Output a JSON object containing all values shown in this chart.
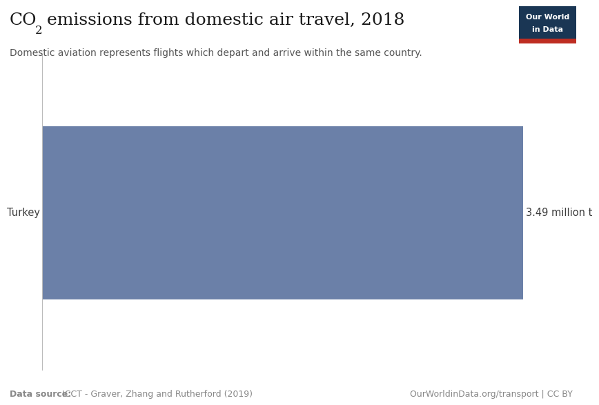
{
  "title_co2": "CO",
  "title_sub": "2",
  "title_rest": " emissions from domestic air travel, 2018",
  "subtitle": "Domestic aviation represents flights which depart and arrive within the same country.",
  "categories": [
    "Turkey"
  ],
  "values": [
    3.49
  ],
  "bar_color": "#6b80a8",
  "label_left": "Turkey",
  "label_right": "3.49 million t",
  "datasource_bold": "Data source:",
  "datasource_rest": " ICCT - Graver, Zhang and Rutherford (2019)",
  "footer_right": "OurWorldinData.org/transport | CC BY",
  "logo_text1": "Our World",
  "logo_text2": "in Data",
  "bg_color": "#ffffff",
  "text_color": "#3d3d3d",
  "title_color": "#1a1a1a",
  "subtitle_color": "#555555",
  "footer_color": "#888888",
  "logo_bg": "#1a3654",
  "logo_red": "#be2d22",
  "bar_height": 0.55
}
